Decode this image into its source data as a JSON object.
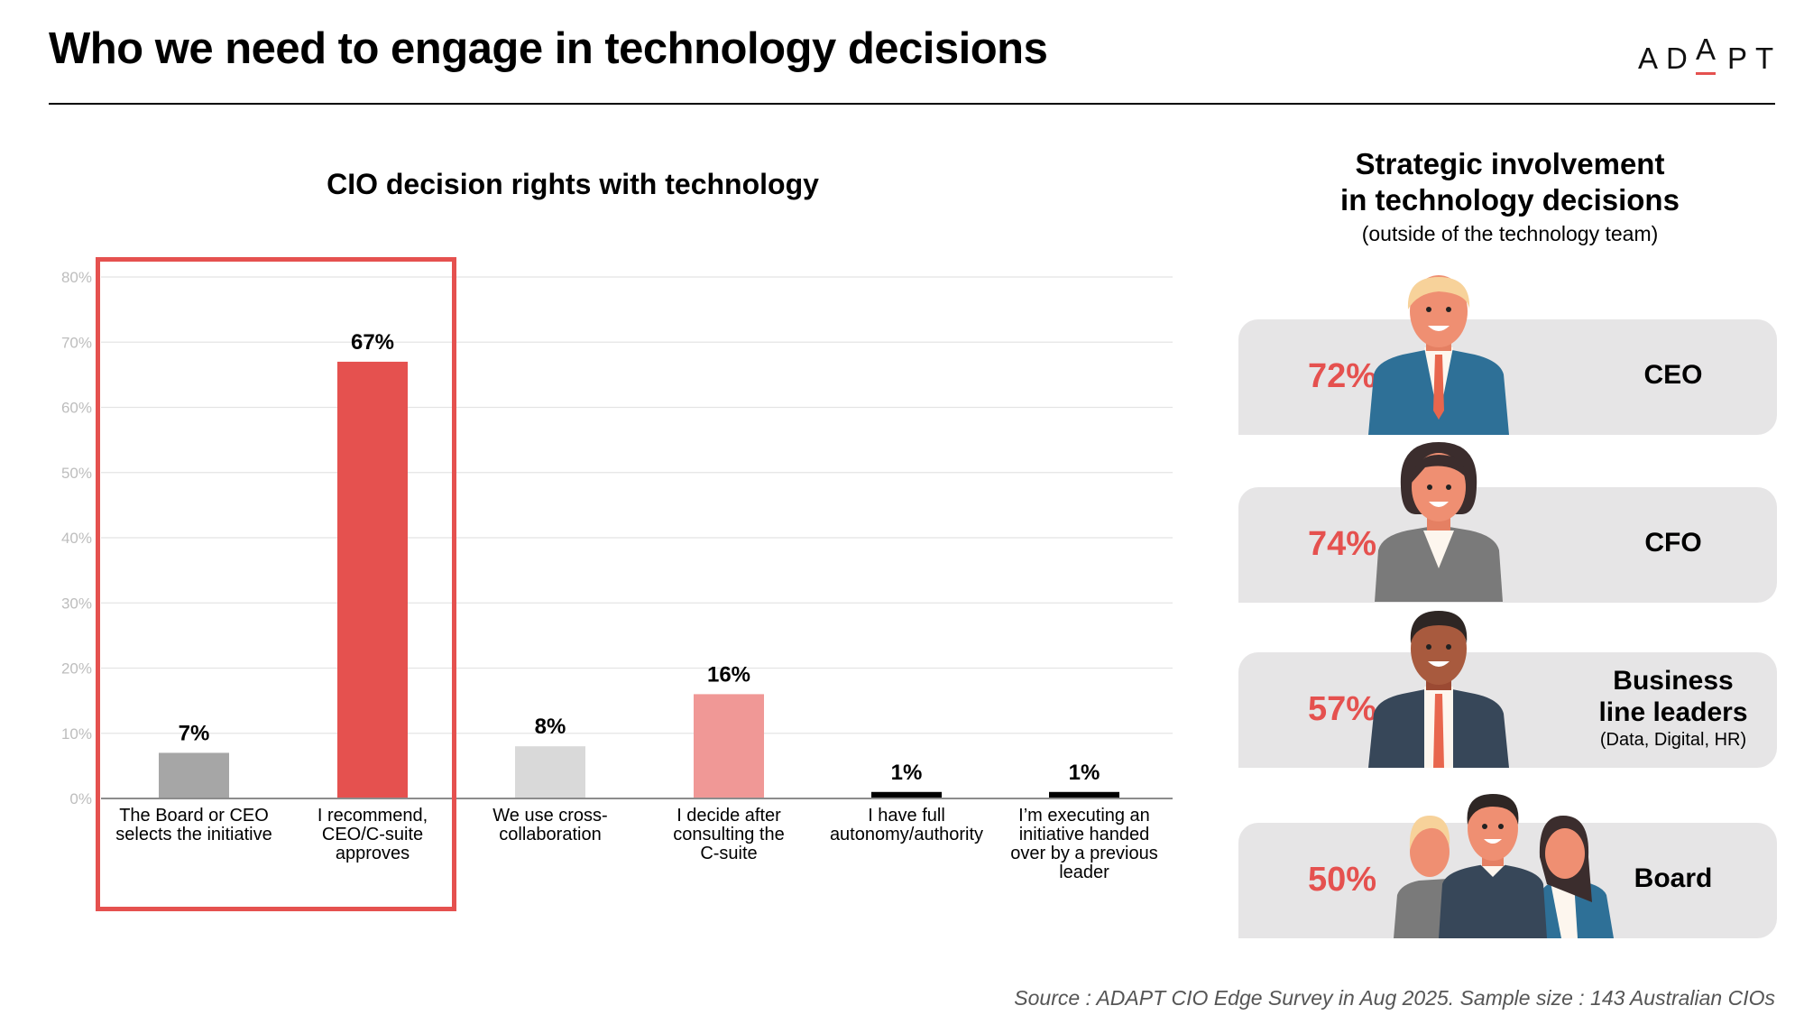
{
  "header": {
    "title": "Who we need to engage in technology decisions",
    "logo": {
      "letters": [
        "A",
        "D",
        "A",
        "P",
        "T"
      ],
      "accent_color": "#e5514f"
    }
  },
  "left_chart": {
    "title": "CIO decision rights with technology"
  },
  "chart_data": {
    "type": "bar",
    "title": "CIO decision rights with technology",
    "xlabel": "",
    "ylabel": "",
    "ylim": [
      0,
      80
    ],
    "yticks": [
      "0%",
      "10%",
      "20%",
      "30%",
      "40%",
      "50%",
      "60%",
      "70%",
      "80%"
    ],
    "grid": true,
    "categories": [
      "The Board or CEO selects the initiative",
      "I recommend, CEO/C-suite approves",
      "We use cross-collaboration",
      "I decide after consulting the C-suite",
      "I have full autonomy/authority",
      "I'm executing an initiative handed over by a previous leader"
    ],
    "category_lines": [
      [
        "The Board or CEO",
        "selects the initiative"
      ],
      [
        "I recommend,",
        "CEO/C-suite",
        "approves"
      ],
      [
        "We use cross-",
        "collaboration"
      ],
      [
        "I decide after",
        "consulting the",
        "C-suite"
      ],
      [
        "I have full",
        "autonomy/authority"
      ],
      [
        "I’m executing an",
        "initiative handed",
        "over by a previous",
        "leader"
      ]
    ],
    "values": [
      7,
      67,
      8,
      16,
      1,
      1
    ],
    "value_labels": [
      "7%",
      "67%",
      "8%",
      "16%",
      "1%",
      "1%"
    ],
    "bar_colors": [
      "#a6a6a6",
      "#e5514f",
      "#d9d9d9",
      "#f09896",
      "#000000",
      "#000000"
    ],
    "highlighted_categories": [
      0,
      1
    ],
    "highlight_color": "#e5514f"
  },
  "right_panel": {
    "title_lines": [
      "Strategic involvement",
      "in technology decisions"
    ],
    "subtitle": "(outside of the technology team)",
    "pct_color": "#e5514f",
    "items": [
      {
        "pct": "72%",
        "label": "CEO",
        "sub": "",
        "icon": "ceo-person-icon"
      },
      {
        "pct": "74%",
        "label": "CFO",
        "sub": "",
        "icon": "cfo-person-icon"
      },
      {
        "pct": "57%",
        "label_lines": [
          "Business",
          "line leaders"
        ],
        "sub": "(Data, Digital, HR)",
        "icon": "business-leader-person-icon"
      },
      {
        "pct": "50%",
        "label": "Board",
        "sub": "",
        "icon": "board-group-icon"
      }
    ]
  },
  "footer": {
    "source": "Source : ADAPT CIO Edge Survey in Aug 2025. Sample size : 143 Australian CIOs"
  }
}
